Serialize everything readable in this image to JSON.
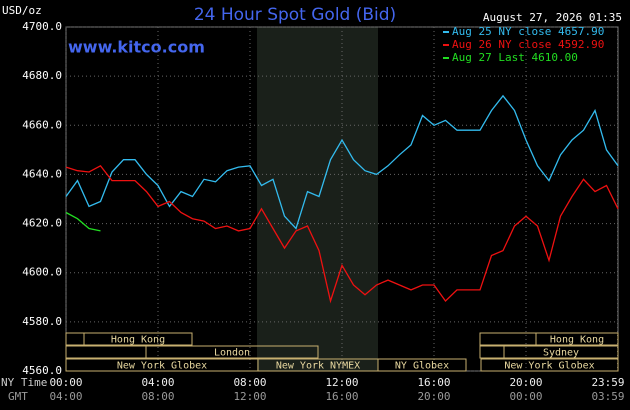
{
  "chart_data": {
    "type": "line",
    "title": "24 Hour Spot Gold (Bid)",
    "y_label": "USD/oz",
    "site": "www.kitco.com",
    "timestamp": "August 27, 2026 01:35",
    "x": [
      0,
      0.5,
      1,
      1.5,
      2,
      2.5,
      3,
      3.5,
      4,
      4.5,
      5,
      5.5,
      6,
      6.5,
      7,
      7.5,
      8,
      8.5,
      9,
      9.5,
      10,
      10.5,
      11,
      11.5,
      12,
      12.5,
      13,
      13.5,
      14,
      14.5,
      15,
      15.5,
      16,
      16.5,
      17,
      17.5,
      18,
      18.5,
      19,
      19.5,
      20,
      20.5,
      21,
      21.5,
      22,
      22.5,
      23,
      23.5,
      24
    ],
    "series": [
      {
        "name": "Aug 25 NY close 4657.90",
        "color": "#33bbee",
        "values": [
          4631,
          4637.5,
          4627,
          4629,
          4641,
          4646,
          4646,
          4640,
          4635.5,
          4627,
          4633,
          4631,
          4638,
          4637,
          4641.5,
          4643,
          4643.5,
          4635.5,
          4638,
          4623,
          4618,
          4633,
          4631,
          4646,
          4654,
          4646,
          4641.5,
          4640,
          4643.5,
          4648,
          4652,
          4664,
          4660,
          4662,
          4658,
          4658,
          4658,
          4666,
          4672,
          4666,
          4654,
          4643.5,
          4637.5,
          4648,
          4654,
          4658,
          4666,
          4650,
          4643.5
        ]
      },
      {
        "name": "Aug 26 NY close 4592.90",
        "color": "#ee1111",
        "values": [
          4643,
          4641.5,
          4641,
          4643.5,
          4637.5,
          4637.5,
          4637.5,
          4633,
          4627,
          4629,
          4624.5,
          4622,
          4621,
          4618,
          4619,
          4617,
          4618,
          4626,
          4618,
          4610,
          4617,
          4619,
          4609,
          4588.5,
          4603,
          4595,
          4591,
          4595,
          4597,
          4595,
          4593,
          4595,
          4595,
          4588.5,
          4593,
          4593,
          4593,
          4607,
          4609,
          4619,
          4623,
          4619,
          4605,
          4623,
          4631,
          4638,
          4633,
          4635.5,
          4626
        ]
      },
      {
        "name": "Aug 27 Last 4610.00",
        "color": "#22dd22",
        "values": [
          4624.5,
          4622,
          4618,
          4617,
          null,
          null,
          null,
          null,
          null,
          null,
          null,
          null,
          null,
          null,
          null,
          null,
          null,
          null,
          null,
          null,
          null,
          null,
          null,
          null,
          null,
          null,
          null,
          null,
          null,
          null,
          null,
          null,
          null,
          null,
          null,
          null,
          null,
          null,
          null,
          null,
          null,
          null,
          null,
          null,
          null,
          null,
          null,
          null,
          null
        ]
      }
    ],
    "xlim": [
      0,
      24
    ],
    "ylim": [
      4560,
      4700
    ],
    "yticks": [
      {
        "value": 4560,
        "label": "4560.0"
      },
      {
        "value": 4580,
        "label": "4580.0"
      },
      {
        "value": 4600,
        "label": "4600.0"
      },
      {
        "value": 4620,
        "label": "4620.0"
      },
      {
        "value": 4640,
        "label": "4640.0"
      },
      {
        "value": 4660,
        "label": "4660.0"
      },
      {
        "value": 4680,
        "label": "4680.0"
      },
      {
        "value": 4700,
        "label": "4700.0"
      }
    ],
    "x_label": "NY Time",
    "xticks": [
      {
        "value": 0,
        "label": "00:00"
      },
      {
        "value": 4,
        "label": "04:00"
      },
      {
        "value": 8,
        "label": "08:00"
      },
      {
        "value": 12,
        "label": "12:00"
      },
      {
        "value": 16,
        "label": "16:00"
      },
      {
        "value": 20,
        "label": "20:00"
      },
      {
        "value": 23.98,
        "label": "23:59"
      }
    ],
    "x2_label": "GMT",
    "x2ticks": [
      {
        "value": 0,
        "label": "04:00"
      },
      {
        "value": 4,
        "label": "08:00"
      },
      {
        "value": 8,
        "label": "12:00"
      },
      {
        "value": 12,
        "label": "16:00"
      },
      {
        "value": 16,
        "label": "20:00"
      },
      {
        "value": 20,
        "label": "00:00"
      },
      {
        "value": 23.98,
        "label": "03:59"
      }
    ],
    "sessions": [
      "Hong Kong",
      "Hong Kong",
      "London",
      "Sydney",
      "New York Globex",
      "New York NYMEX",
      "NY Globex",
      "New York Globex"
    ],
    "grid": true
  }
}
